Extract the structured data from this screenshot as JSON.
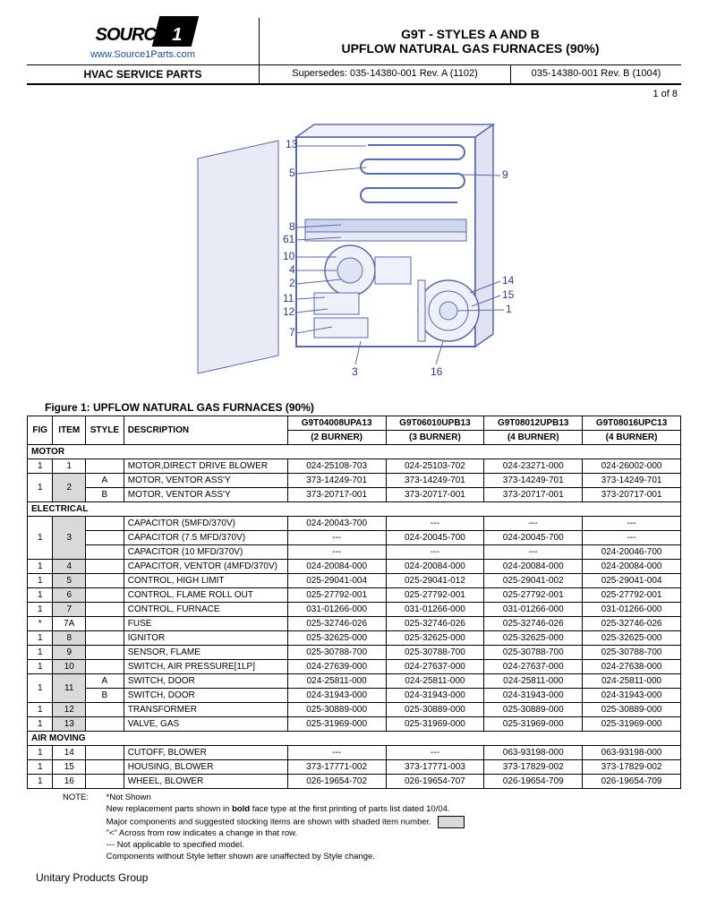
{
  "header": {
    "logo_text": "SOURCE",
    "logo_num": "1",
    "logo_url": "www.Source1Parts.com",
    "title_line1": "G9T - STYLES A AND B",
    "title_line2": "UPFLOW NATURAL GAS FURNACES  (90%)",
    "sub_left": "HVAC SERVICE PARTS",
    "sub_mid": "Supersedes: 035-14380-001 Rev. A (1102)",
    "sub_right": "035-14380-001 Rev. B (1004)",
    "page": "1 of  8"
  },
  "figure": {
    "caption": "Figure 1: UPFLOW NATURAL GAS FURNACES (90%)",
    "callouts_left": [
      "13",
      "5",
      "8",
      "61",
      "10",
      "4",
      "2",
      "11",
      "12",
      "7"
    ],
    "callouts_right_top": [
      "9"
    ],
    "callouts_right": [
      "14",
      "15",
      "1"
    ],
    "callouts_bottom": [
      "3",
      "16"
    ]
  },
  "table": {
    "headers": {
      "fig": "FIG",
      "item": "ITEM",
      "style": "STYLE",
      "desc": "DESCRIPTION",
      "col1a": "G9T04008UPA13",
      "col1b": "(2 BURNER)",
      "col2a": "G9T06010UPB13",
      "col2b": "(3 BURNER)",
      "col3a": "G9T08012UPB13",
      "col3b": "(4 BURNER)",
      "col4a": "G9T08016UPC13",
      "col4b": "(4 BURNER)"
    },
    "sections": [
      {
        "title": "MOTOR",
        "rows": [
          {
            "fig": "1",
            "item": "1",
            "style": "",
            "desc": "MOTOR,DIRECT DRIVE BLOWER",
            "p": [
              "024-25108-703",
              "024-25103-702",
              "024-23271-000",
              "024-26002-000"
            ]
          },
          {
            "fig": "1",
            "item": "2",
            "style": "A",
            "desc": "MOTOR, VENTOR ASS'Y",
            "p": [
              "373-14249-701",
              "373-14249-701",
              "373-14249-701",
              "373-14249-701"
            ],
            "rowspan_item": 2,
            "shaded": true
          },
          {
            "fig": "",
            "item": "",
            "style": "B",
            "desc": "MOTOR, VENTOR ASS'Y",
            "p": [
              "373-20717-001",
              "373-20717-001",
              "373-20717-001",
              "373-20717-001"
            ],
            "skip_fig_item": true
          }
        ]
      },
      {
        "title": "ELECTRICAL",
        "rows": [
          {
            "fig": "1",
            "item": "3",
            "style": "",
            "desc": "CAPACITOR (5MFD/370V)",
            "p": [
              "024-20043-700",
              "---",
              "---",
              "---"
            ],
            "rowspan_item": 3,
            "shaded": true
          },
          {
            "fig": "",
            "item": "",
            "style": "",
            "desc": "CAPACITOR (7.5 MFD/370V)",
            "p": [
              "---",
              "024-20045-700",
              "024-20045-700",
              "---"
            ],
            "skip_fig_item": true
          },
          {
            "fig": "",
            "item": "",
            "style": "",
            "desc": "CAPACITOR (10 MFD/370V)",
            "p": [
              "---",
              "---",
              "---",
              "024-20046-700"
            ],
            "skip_fig_item": true
          },
          {
            "fig": "1",
            "item": "4",
            "style": "",
            "desc": "CAPACITOR, VENTOR (4MFD/370V)",
            "p": [
              "024-20084-000",
              "024-20084-000",
              "024-20084-000",
              "024-20084-000"
            ],
            "shaded": true
          },
          {
            "fig": "1",
            "item": "5",
            "style": "",
            "desc": "CONTROL, HIGH LIMIT",
            "p": [
              "025-29041-004",
              "025-29041-012",
              "025-29041-002",
              "025-29041-004"
            ],
            "shaded": true
          },
          {
            "fig": "1",
            "item": "6",
            "style": "",
            "desc": "CONTROL, FLAME ROLL OUT",
            "p": [
              "025-27792-001",
              "025-27792-001",
              "025-27792-001",
              "025-27792-001"
            ],
            "shaded": true
          },
          {
            "fig": "1",
            "item": "7",
            "style": "",
            "desc": "CONTROL, FURNACE",
            "p": [
              "031-01266-000",
              "031-01266-000",
              "031-01266-000",
              "031-01266-000"
            ],
            "shaded": true
          },
          {
            "fig": "*",
            "item": "7A",
            "style": "",
            "desc": "FUSE",
            "p": [
              "025-32746-026",
              "025-32746-026",
              "025-32746-026",
              "025-32746-026"
            ]
          },
          {
            "fig": "1",
            "item": "8",
            "style": "",
            "desc": "IGNITOR",
            "p": [
              "025-32625-000",
              "025-32625-000",
              "025-32625-000",
              "025-32625-000"
            ],
            "shaded": true
          },
          {
            "fig": "1",
            "item": "9",
            "style": "",
            "desc": "SENSOR, FLAME",
            "p": [
              "025-30788-700",
              "025-30788-700",
              "025-30788-700",
              "025-30788-700"
            ],
            "shaded": true
          },
          {
            "fig": "1",
            "item": "10",
            "style": "",
            "desc": "SWITCH, AIR PRESSURE[1LP]",
            "p": [
              "024-27639-000",
              "024-27637-000",
              "024-27637-000",
              "024-27638-000"
            ],
            "shaded": true
          },
          {
            "fig": "1",
            "item": "11",
            "style": "A",
            "desc": "SWITCH, DOOR",
            "p": [
              "024-25811-000",
              "024-25811-000",
              "024-25811-000",
              "024-25811-000"
            ],
            "rowspan_item": 2,
            "shaded": true
          },
          {
            "fig": "",
            "item": "",
            "style": "B",
            "desc": "SWITCH, DOOR",
            "p": [
              "024-31943-000",
              "024-31943-000",
              "024-31943-000",
              "024-31943-000"
            ],
            "skip_fig_item": true
          },
          {
            "fig": "1",
            "item": "12",
            "style": "",
            "desc": "TRANSFORMER",
            "p": [
              "025-30889-000",
              "025-30889-000",
              "025-30889-000",
              "025-30889-000"
            ],
            "shaded": true
          },
          {
            "fig": "1",
            "item": "13",
            "style": "",
            "desc": "VALVE, GAS",
            "p": [
              "025-31969-000",
              "025-31969-000",
              "025-31969-000",
              "025-31969-000"
            ],
            "shaded": true
          }
        ]
      },
      {
        "title": "AIR MOVING",
        "rows": [
          {
            "fig": "1",
            "item": "14",
            "style": "",
            "desc": "CUTOFF, BLOWER",
            "p": [
              "---",
              "---",
              "063-93198-000",
              "063-93198-000"
            ]
          },
          {
            "fig": "1",
            "item": "15",
            "style": "",
            "desc": "HOUSING, BLOWER",
            "p": [
              "373-17771-002",
              "373-17771-003",
              "373-17829-002",
              "373-17829-002"
            ]
          },
          {
            "fig": "1",
            "item": "16",
            "style": "",
            "desc": "WHEEL, BLOWER",
            "p": [
              "026-19654-702",
              "026-19654-707",
              "026-19654-709",
              "026-19654-709"
            ]
          }
        ]
      }
    ]
  },
  "notes": {
    "label": "NOTE:",
    "lines": [
      "*Not Shown",
      "New replacement parts shown in <b>bold</b> face type at the first printing of parts list dated 10/04.",
      "Major components and suggested stocking items are shown with shaded item number.",
      "\"<\" Across from row indicates a change in that row.",
      "--- Not applicable to specified model.",
      "Components without Style letter shown are unaffected by Style change."
    ]
  },
  "footer": "Unitary Products Group"
}
